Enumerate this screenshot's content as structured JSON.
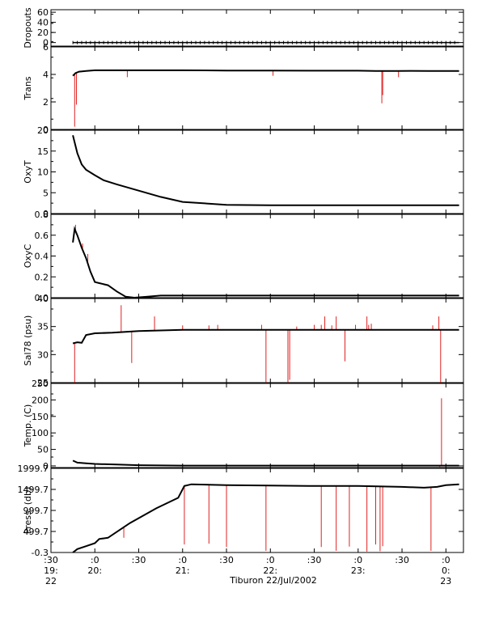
{
  "figure": {
    "xlabel": "Tiburon 22/Jul/2002",
    "line_color": "#000000",
    "spike_color": "#e02020"
  },
  "chart_data": [
    {
      "type": "line",
      "ylabel": "Dropouts",
      "yticks": [
        "0",
        "20",
        "40",
        "60"
      ],
      "ylim": [
        -7,
        65
      ],
      "series": [
        {
          "values_x": [
            19.75,
            24.15
          ],
          "values_y": [
            0,
            0
          ]
        }
      ],
      "markers": "tick-per-sample"
    },
    {
      "type": "line",
      "ylabel": "Trans",
      "yticks": [
        "0",
        "2",
        "4",
        "6"
      ],
      "ylim": [
        0,
        6
      ],
      "x": [
        19.75,
        19.78,
        19.82,
        19.9,
        20.0,
        20.5,
        21.0,
        21.5,
        22.0,
        22.5,
        23.0,
        23.2,
        23.35,
        23.45,
        23.6,
        23.8,
        24.0,
        24.15
      ],
      "y": [
        3.9,
        4.1,
        4.2,
        4.25,
        4.3,
        4.3,
        4.3,
        4.28,
        4.28,
        4.27,
        4.27,
        4.25,
        4.25,
        4.25,
        4.26,
        4.25,
        4.25,
        4.25
      ],
      "spikes": [
        [
          19.77,
          0.2
        ],
        [
          19.79,
          1.8
        ],
        [
          20.37,
          3.8
        ],
        [
          22.03,
          3.9
        ],
        [
          23.27,
          1.9
        ],
        [
          23.28,
          2.5
        ],
        [
          23.46,
          3.8
        ]
      ]
    },
    {
      "type": "line",
      "ylabel": "OxyT",
      "yticks": [
        "0",
        "5",
        "10",
        "15",
        "20"
      ],
      "ylim": [
        0,
        20
      ],
      "x": [
        19.75,
        19.8,
        19.85,
        19.9,
        20.0,
        20.1,
        20.25,
        20.5,
        20.75,
        21.0,
        21.5,
        22.0,
        23.0,
        24.15
      ],
      "y": [
        18.8,
        14.5,
        11.8,
        10.5,
        9.2,
        8.0,
        7.0,
        5.5,
        4.0,
        2.8,
        2.1,
        2.0,
        2.0,
        2.0
      ]
    },
    {
      "type": "line",
      "ylabel": "OxyC",
      "yticks": [
        "0.0",
        "0.2",
        "0.4",
        "0.6",
        "0.8"
      ],
      "ylim": [
        0,
        0.8
      ],
      "x": [
        19.75,
        19.77,
        19.8,
        19.85,
        19.9,
        19.95,
        20.0,
        20.05,
        20.15,
        20.25,
        20.35,
        20.45,
        20.6,
        20.75,
        21.0,
        22.0,
        23.0,
        24.15
      ],
      "y": [
        0.53,
        0.66,
        0.6,
        0.48,
        0.38,
        0.25,
        0.15,
        0.14,
        0.12,
        0.06,
        0.01,
        0.0,
        0.01,
        0.02,
        0.02,
        0.02,
        0.02,
        0.02
      ],
      "spikes": [
        [
          19.78,
          0.7
        ],
        [
          19.86,
          0.52
        ],
        [
          19.92,
          0.42
        ]
      ]
    },
    {
      "type": "line",
      "ylabel": "Sal78 (psu)",
      "yticks": [
        "25",
        "30",
        "35",
        "40"
      ],
      "ylim": [
        25,
        40
      ],
      "x": [
        19.75,
        19.8,
        19.85,
        19.9,
        20.0,
        20.2,
        20.5,
        21.0,
        22.0,
        23.0,
        24.15
      ],
      "y": [
        32.0,
        32.2,
        32.1,
        33.5,
        33.8,
        33.9,
        34.2,
        34.4,
        34.4,
        34.4,
        34.4
      ],
      "spikes": [
        [
          19.77,
          25.0
        ],
        [
          20.3,
          38.8
        ],
        [
          20.42,
          28.5
        ],
        [
          20.68,
          36.8
        ],
        [
          21.0,
          35.2
        ],
        [
          21.3,
          35.2
        ],
        [
          21.4,
          35.3
        ],
        [
          21.9,
          35.3
        ],
        [
          21.95,
          25.0
        ],
        [
          22.2,
          25.0
        ],
        [
          22.22,
          25.5
        ],
        [
          22.3,
          35.0
        ],
        [
          22.5,
          35.3
        ],
        [
          22.58,
          35.3
        ],
        [
          22.62,
          36.8
        ],
        [
          22.7,
          35.2
        ],
        [
          22.75,
          36.8
        ],
        [
          22.85,
          28.8
        ],
        [
          22.97,
          35.3
        ],
        [
          23.1,
          36.8
        ],
        [
          23.12,
          35.3
        ],
        [
          23.15,
          35.5
        ],
        [
          23.85,
          35.2
        ],
        [
          23.92,
          36.8
        ],
        [
          23.94,
          25.0
        ]
      ]
    },
    {
      "type": "line",
      "ylabel": "Temp. (C)",
      "yticks": [
        "0",
        "50",
        "100",
        "150",
        "200",
        "250"
      ],
      "ylim": [
        -5,
        250
      ],
      "x": [
        19.75,
        19.8,
        19.9,
        20.0,
        20.25,
        20.5,
        21.0,
        22.0,
        23.0,
        24.15
      ],
      "y": [
        16,
        10,
        8,
        6,
        4,
        2,
        1,
        1,
        1,
        1
      ],
      "spikes": [
        [
          23.95,
          205
        ],
        [
          23.93,
          -3
        ]
      ]
    },
    {
      "type": "line",
      "ylabel": "Press. (db)",
      "yticks": [
        "-0.3",
        "499.7",
        "999.7",
        "1499.7",
        "1999.7"
      ],
      "ylim": [
        -0.3,
        1999.7
      ],
      "x": [
        19.75,
        19.8,
        19.9,
        20.0,
        20.05,
        20.15,
        20.4,
        20.7,
        20.95,
        21.02,
        21.1,
        21.5,
        22.0,
        22.5,
        23.0,
        23.5,
        23.75,
        23.9,
        24.0,
        24.15
      ],
      "y": [
        0,
        80,
        150,
        220,
        320,
        350,
        700,
        1050,
        1300,
        1580,
        1620,
        1600,
        1590,
        1580,
        1580,
        1560,
        1540,
        1560,
        1600,
        1620
      ],
      "spikes": [
        [
          20.33,
          350
        ],
        [
          21.02,
          190
        ],
        [
          21.3,
          210
        ],
        [
          21.5,
          130
        ],
        [
          21.95,
          40
        ],
        [
          22.58,
          130
        ],
        [
          22.75,
          40
        ],
        [
          22.9,
          140
        ],
        [
          23.1,
          20
        ],
        [
          23.2,
          190
        ],
        [
          23.25,
          30
        ],
        [
          23.28,
          150
        ],
        [
          23.83,
          40
        ],
        [
          23.95,
          1600
        ]
      ]
    }
  ],
  "xaxis": {
    "xlim": [
      19.5,
      24.2
    ],
    "ticks": [
      {
        "x": 19.5,
        "top": ":30",
        "mid": "19:",
        "bot": "22"
      },
      {
        "x": 20.0,
        "top": ":0",
        "mid": "20:",
        "bot": ""
      },
      {
        "x": 20.5,
        "top": ":30",
        "mid": "",
        "bot": ""
      },
      {
        "x": 21.0,
        "top": ":0",
        "mid": "21:",
        "bot": ""
      },
      {
        "x": 21.5,
        "top": ":30",
        "mid": "",
        "bot": ""
      },
      {
        "x": 22.0,
        "top": ":0",
        "mid": "22:",
        "bot": ""
      },
      {
        "x": 22.5,
        "top": ":30",
        "mid": "",
        "bot": ""
      },
      {
        "x": 23.0,
        "top": ":0",
        "mid": "23:",
        "bot": ""
      },
      {
        "x": 23.5,
        "top": ":30",
        "mid": "",
        "bot": ""
      },
      {
        "x": 24.0,
        "top": ":0",
        "mid": "0:",
        "bot": "23"
      }
    ]
  }
}
